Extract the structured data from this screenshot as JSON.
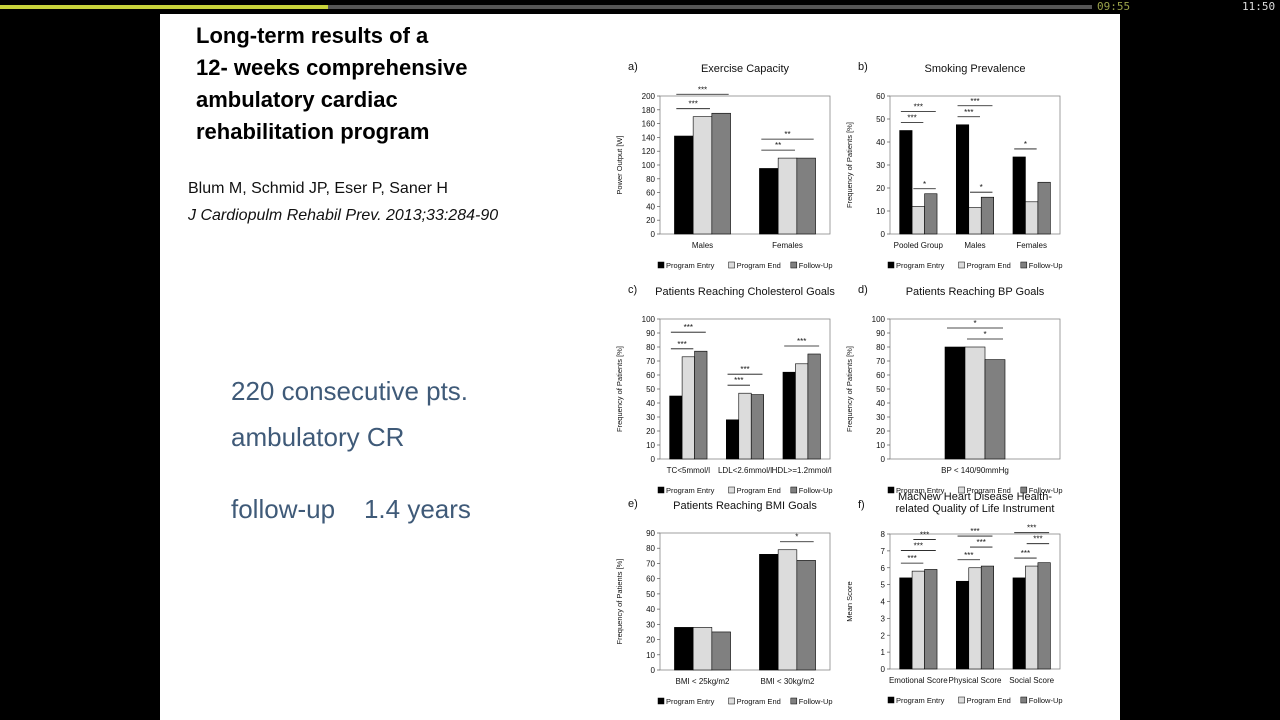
{
  "player": {
    "current_time": "09:55",
    "total_time": "11:50",
    "progress_fraction": 0.3
  },
  "slide": {
    "title": "Long-term results of a\n12- weeks comprehensive\nambulatory cardiac\nrehabilitation program",
    "authors": "Blum M, Schmid JP, Eser P, Saner H",
    "journal": "J Cardiopulm Rehabil Prev. 2013;33:284-90",
    "stats": [
      "220 consecutive pts.",
      "ambulatory CR",
      "follow-up    1.4 years"
    ]
  },
  "legend": [
    "Program Entry",
    "Program End",
    "Follow-Up"
  ],
  "colors": {
    "entry": "#000000",
    "end": "#dcdcdc",
    "follow": "#808080"
  },
  "chart_data": [
    {
      "panel": "a)",
      "type": "bar",
      "title": "Exercise Capacity",
      "ylabel": "Power Output [W]",
      "ylim": [
        0,
        200
      ],
      "yticks": [
        0,
        20,
        40,
        60,
        80,
        100,
        120,
        140,
        160,
        180,
        200
      ],
      "categories": [
        "Males",
        "Females"
      ],
      "series": [
        {
          "name": "Program Entry",
          "values": [
            142,
            95
          ]
        },
        {
          "name": "Program End",
          "values": [
            170,
            110
          ]
        },
        {
          "name": "Follow-Up",
          "values": [
            175,
            110
          ]
        }
      ],
      "sig": [
        {
          "cat": 0,
          "from": 0,
          "to": 1,
          "label": "***",
          "level": 0
        },
        {
          "cat": 0,
          "from": 0,
          "to": 2,
          "label": "***",
          "level": 1
        },
        {
          "cat": 1,
          "from": 0,
          "to": 1,
          "label": "**",
          "level": 0
        },
        {
          "cat": 1,
          "from": 0,
          "to": 2,
          "label": "**",
          "level": 1
        }
      ]
    },
    {
      "panel": "b)",
      "type": "bar",
      "title": "Smoking Prevalence",
      "ylabel": "Frequency of Patients [%]",
      "ylim": [
        0,
        60
      ],
      "yticks": [
        0,
        10,
        20,
        30,
        40,
        50,
        60
      ],
      "categories": [
        "Pooled Group",
        "Males",
        "Females"
      ],
      "series": [
        {
          "name": "Program Entry",
          "values": [
            45,
            47.5,
            33.5
          ]
        },
        {
          "name": "Program End",
          "values": [
            12,
            11.5,
            14
          ]
        },
        {
          "name": "Follow-Up",
          "values": [
            17.5,
            16,
            22.5
          ]
        }
      ],
      "sig": [
        {
          "cat": 0,
          "from": 0,
          "to": 1,
          "label": "***",
          "level": 0
        },
        {
          "cat": 0,
          "from": 0,
          "to": 2,
          "label": "***",
          "level": 1
        },
        {
          "cat": 0,
          "from": 1,
          "to": 2,
          "label": "*",
          "level": -1
        },
        {
          "cat": 1,
          "from": 0,
          "to": 1,
          "label": "***",
          "level": 0
        },
        {
          "cat": 1,
          "from": 0,
          "to": 2,
          "label": "***",
          "level": 1
        },
        {
          "cat": 1,
          "from": 1,
          "to": 2,
          "label": "*",
          "level": -1
        },
        {
          "cat": 2,
          "from": 0,
          "to": 1,
          "label": "*",
          "level": 0
        }
      ]
    },
    {
      "panel": "c)",
      "type": "bar",
      "title": "Patients Reaching Cholesterol Goals",
      "ylabel": "Frequency of Patients [%]",
      "ylim": [
        0,
        100
      ],
      "yticks": [
        0,
        10,
        20,
        30,
        40,
        50,
        60,
        70,
        80,
        90,
        100
      ],
      "categories": [
        "TC<5mmol/l",
        "LDL<2.6mmol/l",
        "HDL>=1.2mmol/l"
      ],
      "series": [
        {
          "name": "Program Entry",
          "values": [
            45,
            28,
            62
          ]
        },
        {
          "name": "Program End",
          "values": [
            73,
            47,
            68
          ]
        },
        {
          "name": "Follow-Up",
          "values": [
            77,
            46,
            75
          ]
        }
      ],
      "sig": [
        {
          "cat": 0,
          "from": 0,
          "to": 1,
          "label": "***",
          "level": 0
        },
        {
          "cat": 0,
          "from": 0,
          "to": 2,
          "label": "***",
          "level": 1
        },
        {
          "cat": 1,
          "from": 0,
          "to": 1,
          "label": "***",
          "level": 0
        },
        {
          "cat": 1,
          "from": 0,
          "to": 2,
          "label": "***",
          "level": 1
        },
        {
          "cat": 2,
          "from": 0,
          "to": 2,
          "label": "***",
          "level": 0
        }
      ]
    },
    {
      "panel": "d)",
      "type": "bar",
      "title": "Patients Reaching BP Goals",
      "ylabel": "Frequency of Patients [%]",
      "ylim": [
        0,
        100
      ],
      "yticks": [
        0,
        10,
        20,
        30,
        40,
        50,
        60,
        70,
        80,
        90,
        100
      ],
      "categories": [
        "BP < 140/90mmHg"
      ],
      "series": [
        {
          "name": "Program Entry",
          "values": [
            80
          ]
        },
        {
          "name": "Program End",
          "values": [
            80
          ]
        },
        {
          "name": "Follow-Up",
          "values": [
            71
          ]
        }
      ],
      "sig": [
        {
          "cat": 0,
          "from": 1,
          "to": 2,
          "label": "*",
          "level": 0
        },
        {
          "cat": 0,
          "from": 0,
          "to": 2,
          "label": "*",
          "level": 1
        }
      ]
    },
    {
      "panel": "e)",
      "type": "bar",
      "title": "Patients Reaching BMI Goals",
      "ylabel": "Frequency of Patients [%]",
      "ylim": [
        0,
        90
      ],
      "yticks": [
        0,
        10,
        20,
        30,
        40,
        50,
        60,
        70,
        80,
        90
      ],
      "categories": [
        "BMI < 25kg/m2",
        "BMI < 30kg/m2"
      ],
      "series": [
        {
          "name": "Program Entry",
          "values": [
            28,
            76
          ]
        },
        {
          "name": "Program End",
          "values": [
            28,
            79
          ]
        },
        {
          "name": "Follow-Up",
          "values": [
            25,
            72
          ]
        }
      ],
      "sig": [
        {
          "cat": 1,
          "from": 1,
          "to": 2,
          "label": "*",
          "level": 0
        }
      ]
    },
    {
      "panel": "f)",
      "type": "bar",
      "title": "MacNew Heart Disease Health-\nrelated Quality of Life Instrument",
      "ylabel": "Mean Score",
      "ylim": [
        0,
        8
      ],
      "yticks": [
        0,
        1,
        2,
        3,
        4,
        5,
        6,
        7,
        8
      ],
      "categories": [
        "Emotional Score",
        "Physical Score",
        "Social Score"
      ],
      "series": [
        {
          "name": "Program Entry",
          "values": [
            5.4,
            5.2,
            5.4
          ]
        },
        {
          "name": "Program End",
          "values": [
            5.8,
            6.0,
            6.1
          ]
        },
        {
          "name": "Follow-Up",
          "values": [
            5.9,
            6.1,
            6.3
          ]
        }
      ],
      "sig": [
        {
          "cat": 0,
          "from": 0,
          "to": 1,
          "label": "***",
          "level": 0
        },
        {
          "cat": 0,
          "from": 0,
          "to": 2,
          "label": "***",
          "level": 1
        },
        {
          "cat": 0,
          "from": 1,
          "to": 2,
          "label": "***",
          "level": 2
        },
        {
          "cat": 1,
          "from": 0,
          "to": 1,
          "label": "***",
          "level": 0
        },
        {
          "cat": 1,
          "from": 1,
          "to": 2,
          "label": "***",
          "level": 1
        },
        {
          "cat": 1,
          "from": 0,
          "to": 2,
          "label": "***",
          "level": 2
        },
        {
          "cat": 2,
          "from": 0,
          "to": 1,
          "label": "***",
          "level": 0
        },
        {
          "cat": 2,
          "from": 1,
          "to": 2,
          "label": "***",
          "level": 1
        },
        {
          "cat": 2,
          "from": 0,
          "to": 2,
          "label": "***",
          "level": 2
        }
      ]
    }
  ]
}
